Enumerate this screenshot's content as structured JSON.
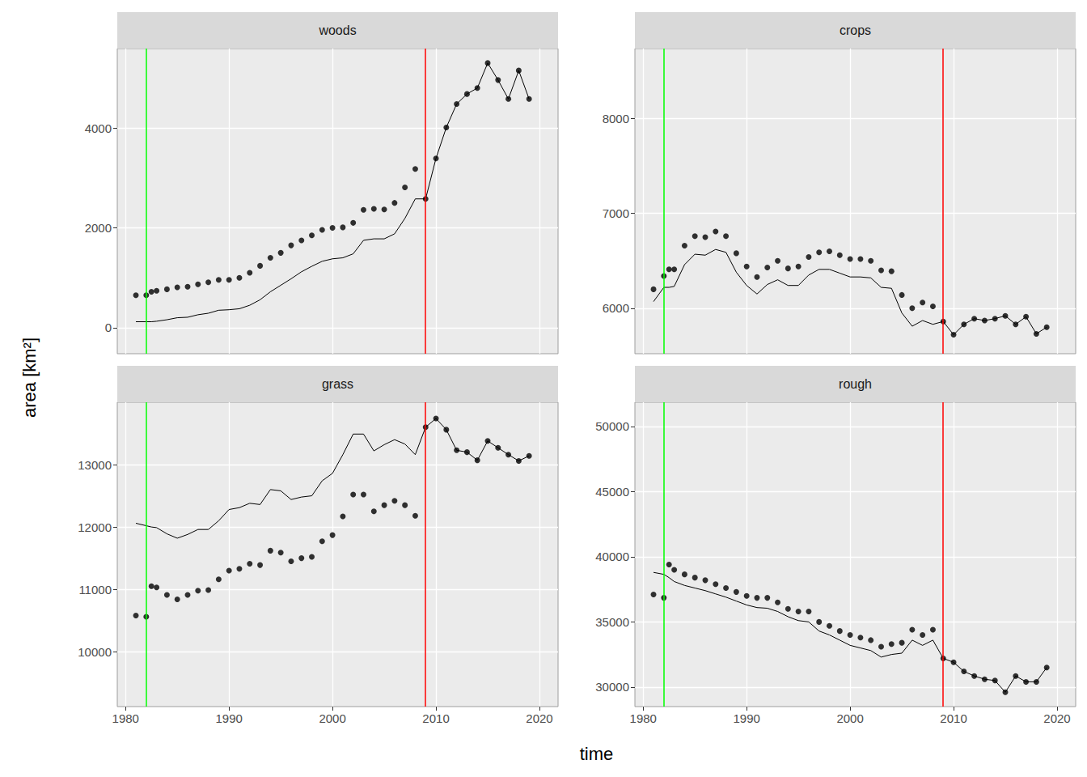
{
  "chart_data": {
    "type": "line",
    "xlabel": "time",
    "ylabel": "area [km²]",
    "grid": true,
    "xlim": [
      1979.2,
      2021.8
    ],
    "xticks": [
      1980,
      1990,
      2000,
      2010,
      2020
    ],
    "x": [
      1981,
      1982,
      1982.5,
      1983,
      1984,
      1985,
      1986,
      1987,
      1988,
      1989,
      1990,
      1991,
      1992,
      1993,
      1994,
      1995,
      1996,
      1997,
      1998,
      1999,
      2000,
      2001,
      2002,
      2003,
      2004,
      2005,
      2006,
      2007,
      2008,
      2009,
      2010,
      2011,
      2012,
      2013,
      2014,
      2015,
      2016,
      2017,
      2018,
      2019
    ],
    "vlines": [
      {
        "value": 1982,
        "color": "#00ff00"
      },
      {
        "value": 2009,
        "color": "#ff0000"
      }
    ],
    "panels": [
      {
        "title": "woods",
        "ylim": [
          -520,
          5590
        ],
        "yticks": [
          0,
          2000,
          4000
        ],
        "series": [
          {
            "type": "scatter",
            "color": "#000000",
            "marker": "circle",
            "values": [
              650,
              650,
              720,
              740,
              770,
              810,
              820,
              870,
              910,
              960,
              960,
              1000,
              1100,
              1240,
              1400,
              1500,
              1650,
              1750,
              1850,
              1960,
              2000,
              2010,
              2100,
              2360,
              2380,
              2370,
              2500,
              2810,
              3180,
              2580,
              3390,
              4010,
              4480,
              4680,
              4800,
              5300,
              4960,
              4580,
              5150,
              4580
            ]
          },
          {
            "type": "line",
            "color": "#000000",
            "line_style": "solid",
            "values": [
              120,
              120,
              120,
              130,
              160,
              200,
              210,
              260,
              290,
              350,
              360,
              380,
              450,
              560,
              720,
              850,
              980,
              1120,
              1230,
              1330,
              1380,
              1400,
              1480,
              1750,
              1780,
              1780,
              1880,
              2190,
              2580,
              2580,
              3390,
              4010,
              4480,
              4680,
              4800,
              5300,
              4960,
              4580,
              5150,
              4580
            ]
          }
        ]
      },
      {
        "title": "crops",
        "ylim": [
          5520,
          8740
        ],
        "yticks": [
          6000,
          7000,
          8000
        ],
        "series": [
          {
            "type": "scatter",
            "color": "#000000",
            "marker": "circle",
            "values": [
              6200,
              6340,
              6410,
              6410,
              6660,
              6760,
              6750,
              6810,
              6760,
              6580,
              6440,
              6330,
              6430,
              6500,
              6420,
              6440,
              6540,
              6590,
              6600,
              6560,
              6520,
              6520,
              6500,
              6400,
              6390,
              6140,
              6000,
              6060,
              6020,
              5860,
              5720,
              5830,
              5890,
              5870,
              5890,
              5920,
              5830,
              5910,
              5730,
              5800
            ]
          },
          {
            "type": "line",
            "color": "#000000",
            "line_style": "solid",
            "values": [
              6070,
              6220,
              6220,
              6230,
              6460,
              6570,
              6560,
              6620,
              6590,
              6380,
              6240,
              6150,
              6250,
              6300,
              6240,
              6240,
              6350,
              6410,
              6410,
              6370,
              6330,
              6330,
              6320,
              6220,
              6210,
              5950,
              5810,
              5870,
              5830,
              5860,
              5720,
              5830,
              5890,
              5870,
              5890,
              5920,
              5830,
              5910,
              5730,
              5800
            ]
          }
        ]
      },
      {
        "title": "grass",
        "ylim": [
          9120,
          14000
        ],
        "yticks": [
          10000,
          11000,
          12000,
          13000
        ],
        "series": [
          {
            "type": "scatter",
            "color": "#000000",
            "marker": "circle",
            "values": [
              10580,
              10560,
              11050,
              11030,
              10910,
              10840,
              10910,
              10980,
              10990,
              11160,
              11300,
              11330,
              11410,
              11390,
              11620,
              11590,
              11450,
              11500,
              11520,
              11770,
              11870,
              12170,
              12520,
              12520,
              12250,
              12350,
              12420,
              12350,
              12180,
              13600,
              13740,
              13560,
              13230,
              13200,
              13070,
              13380,
              13270,
              13160,
              13060,
              13140
            ]
          },
          {
            "type": "line",
            "color": "#000000",
            "line_style": "solid",
            "values": [
              12060,
              12020,
              12000,
              11990,
              11890,
              11820,
              11880,
              11960,
              11960,
              12100,
              12280,
              12310,
              12380,
              12360,
              12600,
              12580,
              12440,
              12480,
              12500,
              12740,
              12860,
              13160,
              13490,
              13490,
              13220,
              13320,
              13400,
              13330,
              13160,
              13600,
              13740,
              13560,
              13230,
              13200,
              13070,
              13380,
              13270,
              13160,
              13060,
              13140
            ]
          }
        ]
      },
      {
        "title": "rough",
        "ylim": [
          28500,
          51860
        ],
        "yticks": [
          30000,
          35000,
          40000,
          45000,
          50000
        ],
        "series": [
          {
            "type": "scatter",
            "color": "#000000",
            "marker": "circle",
            "values": [
              37100,
              36850,
              39400,
              39000,
              38650,
              38400,
              38200,
              37900,
              37600,
              37300,
              37000,
              36850,
              36850,
              36500,
              36000,
              35800,
              35800,
              35000,
              34700,
              34300,
              34000,
              33800,
              33600,
              33100,
              33300,
              33400,
              34400,
              34000,
              34400,
              32200,
              31900,
              31200,
              30850,
              30600,
              30500,
              29600,
              30850,
              30400,
              30400,
              31500
            ]
          },
          {
            "type": "line",
            "color": "#000000",
            "line_style": "solid",
            "values": [
              38800,
              38650,
              38400,
              38100,
              37800,
              37600,
              37400,
              37150,
              36900,
              36600,
              36300,
              36100,
              36050,
              35800,
              35400,
              35100,
              35000,
              34300,
              34000,
              33600,
              33200,
              33000,
              32800,
              32300,
              32500,
              32600,
              33600,
              33200,
              33600,
              32200,
              31900,
              31200,
              30850,
              30600,
              30500,
              29600,
              30850,
              30400,
              30400,
              31500
            ]
          }
        ]
      }
    ]
  }
}
